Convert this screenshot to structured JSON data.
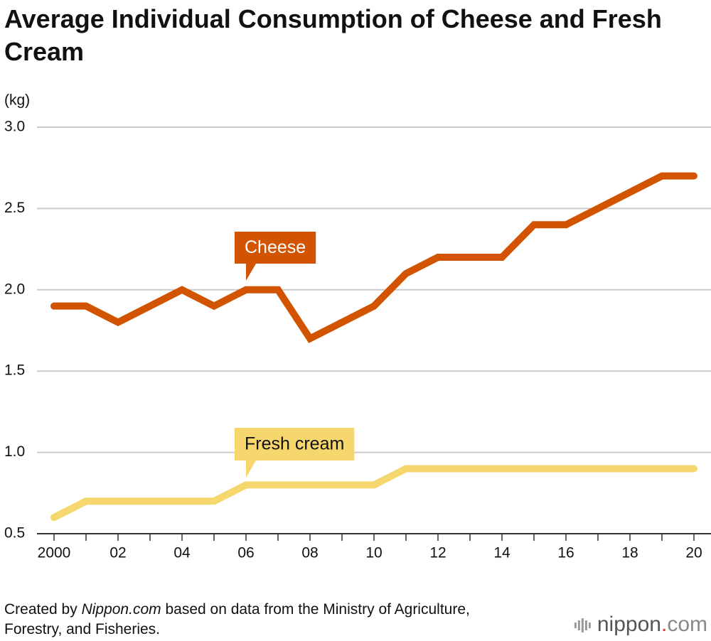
{
  "chart_data": {
    "type": "line",
    "title": "Average Individual Consumption of Cheese and Fresh Cream",
    "y_label": "(kg)",
    "x": [
      2000,
      2001,
      2002,
      2003,
      2004,
      2005,
      2006,
      2007,
      2008,
      2009,
      2010,
      2011,
      2012,
      2013,
      2014,
      2015,
      2016,
      2017,
      2018,
      2019,
      2020
    ],
    "xlim": [
      2000,
      2020
    ],
    "xticks": [
      2000,
      {
        "value": 2002,
        "label": "02"
      },
      {
        "value": 2004,
        "label": "04"
      },
      {
        "value": 2006,
        "label": "06"
      },
      {
        "value": 2008,
        "label": "08"
      },
      {
        "value": 2010,
        "label": "10"
      },
      {
        "value": 2012,
        "label": "12"
      },
      {
        "value": 2014,
        "label": "14"
      },
      {
        "value": 2016,
        "label": "16"
      },
      {
        "value": 2018,
        "label": "18"
      },
      {
        "value": 2020,
        "label": "20"
      }
    ],
    "ylim": [
      0.5,
      3
    ],
    "yticks": [
      0.5,
      {
        "value": 1,
        "label": "1.0"
      },
      1.5,
      {
        "value": 2,
        "label": "2.0"
      },
      2.5,
      {
        "value": 3,
        "label": "3.0"
      }
    ],
    "grid": true,
    "series": [
      {
        "name": "Cheese",
        "color": "#d35400",
        "text_color": "#ffffff",
        "values": [
          1.9,
          1.9,
          1.8,
          1.9,
          2.0,
          1.9,
          2.0,
          2.0,
          1.7,
          1.8,
          1.9,
          2.1,
          2.2,
          2.2,
          2.2,
          2.4,
          2.4,
          2.5,
          2.6,
          2.7,
          2.7
        ]
      },
      {
        "name": "Fresh cream",
        "color": "#f5d76e",
        "text_color": "#111111",
        "values": [
          0.6,
          0.7,
          0.7,
          0.7,
          0.7,
          0.7,
          0.8,
          0.8,
          0.8,
          0.8,
          0.8,
          0.9,
          0.9,
          0.9,
          0.9,
          0.9,
          0.9,
          0.9,
          0.9,
          0.9,
          0.9
        ]
      }
    ],
    "source": {
      "prefix": "Created by ",
      "italic": "Nippon.com",
      "rest": " based on data from the Ministry of Agriculture, Forestry, and Fisheries."
    },
    "logo": [
      "nippon",
      ".",
      "com"
    ]
  }
}
